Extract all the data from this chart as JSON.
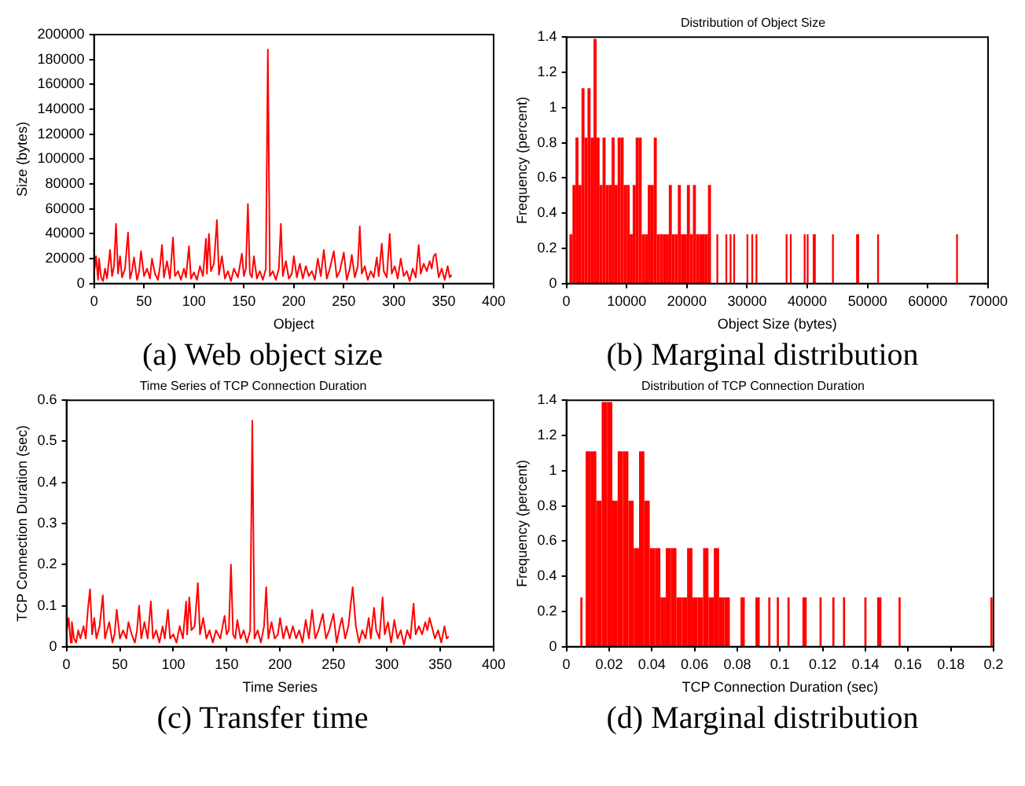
{
  "chart_data": [
    {
      "type": "line",
      "xlabel": "Object",
      "ylabel": "Size (bytes)",
      "color": "#ff0000",
      "annotations": [
        "(a) Web object size"
      ],
      "xlim": [
        0,
        400
      ],
      "xticks": [
        0,
        50,
        100,
        150,
        200,
        250,
        300,
        350,
        400
      ],
      "ylim": [
        0,
        200000
      ],
      "yticks": [
        0,
        20000,
        40000,
        60000,
        80000,
        100000,
        120000,
        140000,
        160000,
        180000,
        200000
      ],
      "x": [
        0,
        2,
        4,
        5,
        7,
        9,
        11,
        13,
        16,
        18,
        20,
        22,
        24,
        26,
        28,
        31,
        34,
        36,
        38,
        40,
        43,
        45,
        47,
        50,
        53,
        56,
        58,
        61,
        64,
        66,
        68,
        70,
        73,
        76,
        79,
        81,
        84,
        87,
        90,
        92,
        95,
        97,
        100,
        103,
        106,
        109,
        112,
        113,
        115,
        117,
        120,
        123,
        125,
        128,
        131,
        134,
        137,
        140,
        144,
        148,
        150,
        152,
        154,
        156,
        158,
        160,
        163,
        166,
        169,
        172,
        174,
        176,
        179,
        182,
        185,
        187,
        189,
        192,
        195,
        198,
        200,
        203,
        206,
        209,
        212,
        215,
        218,
        221,
        224,
        227,
        230,
        233,
        236,
        240,
        243,
        246,
        250,
        253,
        256,
        258,
        261,
        264,
        266,
        268,
        271,
        274,
        277,
        280,
        283,
        285,
        288,
        290,
        293,
        296,
        298,
        301,
        304,
        307,
        310,
        313,
        316,
        319,
        322,
        325,
        327,
        330,
        333,
        336,
        338,
        340,
        342,
        345,
        348,
        351,
        354,
        356,
        358
      ],
      "values": [
        8000,
        22000,
        3000,
        20000,
        5000,
        2000,
        12000,
        4000,
        27000,
        6000,
        14000,
        48000,
        8000,
        22000,
        5000,
        12000,
        41000,
        4000,
        10000,
        21000,
        3000,
        9000,
        26000,
        6000,
        12000,
        4000,
        20000,
        8000,
        3000,
        14000,
        31000,
        5000,
        18000,
        4000,
        37000,
        6000,
        10000,
        3000,
        12000,
        5000,
        30000,
        4000,
        9000,
        3000,
        14000,
        6000,
        36000,
        8000,
        40000,
        10000,
        16000,
        51000,
        7000,
        22000,
        4000,
        10000,
        2000,
        12000,
        5000,
        24000,
        6000,
        12000,
        64000,
        8000,
        5000,
        22000,
        4000,
        10000,
        3000,
        12000,
        188000,
        6000,
        10000,
        3000,
        12000,
        48000,
        6000,
        18000,
        4000,
        8000,
        22000,
        5000,
        16000,
        4000,
        14000,
        6000,
        10000,
        3000,
        20000,
        6000,
        27000,
        4000,
        12000,
        26000,
        5000,
        10000,
        25000,
        3000,
        12000,
        23000,
        5000,
        14000,
        46000,
        8000,
        14000,
        3000,
        10000,
        5000,
        21000,
        6000,
        32000,
        10000,
        5000,
        40000,
        8000,
        14000,
        4000,
        20000,
        6000,
        10000,
        2000,
        12000,
        5000,
        31000,
        8000,
        16000,
        10000,
        18000,
        12000,
        22000,
        24000,
        5000,
        12000,
        3000,
        14000,
        5000,
        7000
      ]
    },
    {
      "type": "histogram",
      "title": "Distribution of Object Size",
      "xlabel": "Object Size (bytes)",
      "ylabel": "Frequency (percent)",
      "color": "#ff0000",
      "annotations": [
        "(b) Marginal distribution"
      ],
      "xlim": [
        0,
        70000
      ],
      "xticks": [
        0,
        10000,
        20000,
        30000,
        40000,
        50000,
        60000,
        70000
      ],
      "ylim": [
        0,
        1.4
      ],
      "yticks": [
        0,
        0.2,
        0.4,
        0.6,
        0.8,
        1,
        1.2,
        1.4
      ],
      "bins": [
        500,
        1000,
        1500,
        2000,
        2500,
        3000,
        3500,
        4000,
        4500,
        5000,
        5500,
        6000,
        6500,
        7000,
        7500,
        8000,
        8500,
        9000,
        9500,
        10000,
        10500,
        11000,
        11500,
        12000,
        12500,
        13000,
        13500,
        14000,
        14500,
        15000,
        15500,
        16000,
        16500,
        17000,
        17500,
        18000,
        18500,
        19000,
        19500,
        20000,
        20500,
        21000,
        21500,
        22000,
        22500,
        23000,
        23500,
        24000,
        24900,
        25200,
        26400,
        26700,
        27100,
        27400,
        27700,
        28000,
        29900,
        30200,
        30700,
        31000,
        31400,
        31700,
        36400,
        36700,
        37100,
        37400,
        39400,
        39700,
        39900,
        40200,
        40900,
        41400,
        44100,
        44400,
        48100,
        48600,
        51600,
        51900,
        64700,
        65000
      ],
      "values": [
        0.28,
        0.56,
        0.83,
        0.56,
        1.11,
        0.83,
        1.11,
        0.83,
        1.39,
        0.83,
        0.56,
        0.83,
        0.56,
        0.56,
        0.83,
        0.56,
        0.83,
        0.83,
        0.56,
        0.56,
        0.28,
        0.56,
        0.83,
        0.83,
        0.28,
        0.28,
        0.56,
        0.56,
        0.83,
        0.28,
        0.28,
        0.28,
        0.28,
        0.56,
        0.28,
        0.28,
        0.56,
        0.28,
        0.28,
        0.56,
        0.28,
        0.56,
        0.28,
        0.28,
        0.28,
        0.28,
        0.56,
        0,
        0.28,
        0,
        0.28,
        0,
        0.28,
        0,
        0.28,
        0,
        0.28,
        0,
        0.28,
        0,
        0.28,
        0,
        0.28,
        0,
        0.28,
        0,
        0.28,
        0,
        0.28,
        0,
        0.28,
        0,
        0.28,
        0,
        0.28,
        0,
        0.28,
        0,
        0.28
      ]
    },
    {
      "type": "line",
      "title": "Time Series of TCP Connection Duration",
      "xlabel": "Time Series",
      "ylabel": "TCP Connection Duration (sec)",
      "color": "#ff0000",
      "annotations": [
        "(c) Transfer time"
      ],
      "xlim": [
        0,
        400
      ],
      "xticks": [
        0,
        50,
        100,
        150,
        200,
        250,
        300,
        350,
        400
      ],
      "ylim": [
        0,
        0.6
      ],
      "yticks": [
        0,
        0.1,
        0.2,
        0.3,
        0.4,
        0.5,
        0.6
      ],
      "x": [
        0,
        2,
        4,
        5,
        7,
        9,
        11,
        13,
        16,
        18,
        20,
        22,
        24,
        26,
        28,
        31,
        34,
        36,
        38,
        40,
        43,
        45,
        47,
        50,
        53,
        56,
        58,
        61,
        64,
        66,
        68,
        70,
        73,
        76,
        79,
        81,
        84,
        87,
        90,
        92,
        95,
        97,
        100,
        103,
        106,
        109,
        112,
        113,
        115,
        117,
        120,
        123,
        125,
        128,
        131,
        134,
        137,
        140,
        144,
        148,
        150,
        152,
        154,
        156,
        158,
        160,
        163,
        166,
        169,
        172,
        174,
        176,
        179,
        182,
        185,
        187,
        189,
        192,
        195,
        198,
        200,
        203,
        206,
        209,
        212,
        215,
        218,
        221,
        224,
        227,
        230,
        233,
        236,
        240,
        243,
        246,
        250,
        253,
        256,
        258,
        261,
        264,
        266,
        268,
        271,
        274,
        277,
        280,
        283,
        285,
        288,
        290,
        293,
        296,
        298,
        301,
        304,
        307,
        310,
        313,
        316,
        319,
        322,
        325,
        327,
        330,
        333,
        336,
        338,
        340,
        342,
        345,
        348,
        351,
        354,
        356,
        358
      ],
      "values": [
        0.03,
        0.07,
        0.01,
        0.06,
        0.02,
        0.01,
        0.04,
        0.02,
        0.05,
        0.02,
        0.09,
        0.14,
        0.03,
        0.07,
        0.02,
        0.05,
        0.125,
        0.02,
        0.04,
        0.06,
        0.01,
        0.03,
        0.09,
        0.02,
        0.04,
        0.02,
        0.06,
        0.03,
        0.01,
        0.04,
        0.1,
        0.02,
        0.06,
        0.02,
        0.11,
        0.02,
        0.04,
        0.01,
        0.05,
        0.02,
        0.09,
        0.02,
        0.03,
        0.01,
        0.05,
        0.02,
        0.11,
        0.03,
        0.12,
        0.04,
        0.05,
        0.155,
        0.03,
        0.07,
        0.02,
        0.04,
        0.01,
        0.04,
        0.02,
        0.075,
        0.03,
        0.04,
        0.2,
        0.03,
        0.02,
        0.065,
        0.02,
        0.04,
        0.01,
        0.04,
        0.55,
        0.02,
        0.04,
        0.01,
        0.05,
        0.145,
        0.02,
        0.06,
        0.02,
        0.03,
        0.07,
        0.02,
        0.05,
        0.02,
        0.05,
        0.02,
        0.04,
        0.01,
        0.065,
        0.02,
        0.09,
        0.02,
        0.04,
        0.08,
        0.02,
        0.04,
        0.08,
        0.01,
        0.05,
        0.07,
        0.02,
        0.05,
        0.1,
        0.145,
        0.05,
        0.01,
        0.04,
        0.02,
        0.07,
        0.02,
        0.095,
        0.04,
        0.02,
        0.12,
        0.03,
        0.06,
        0.01,
        0.065,
        0.02,
        0.04,
        0.005,
        0.04,
        0.02,
        0.105,
        0.03,
        0.05,
        0.03,
        0.06,
        0.04,
        0.07,
        0.05,
        0.02,
        0.04,
        0.01,
        0.05,
        0.02,
        0.025
      ]
    },
    {
      "type": "histogram",
      "title": "Distribution of TCP Connection Duration",
      "xlabel": "TCP Connection Duration (sec)",
      "ylabel": "Frequency (percent)",
      "color": "#ff0000",
      "annotations": [
        "(d) Marginal distribution"
      ],
      "xlim": [
        0,
        0.2
      ],
      "xticks": [
        0,
        0.02,
        0.04,
        0.06,
        0.08,
        0.1,
        0.12,
        0.14,
        0.16,
        0.18,
        0.2
      ],
      "ylim": [
        0,
        1.4
      ],
      "yticks": [
        0,
        0.2,
        0.4,
        0.6,
        0.8,
        1,
        1.2,
        1.4
      ],
      "bins": [
        0.0065,
        0.0075,
        0.009,
        0.0115,
        0.014,
        0.0165,
        0.019,
        0.0215,
        0.024,
        0.0265,
        0.029,
        0.0315,
        0.034,
        0.0365,
        0.039,
        0.0415,
        0.044,
        0.0465,
        0.049,
        0.0515,
        0.054,
        0.0565,
        0.059,
        0.0615,
        0.064,
        0.0665,
        0.069,
        0.0715,
        0.074,
        0.0765,
        0.0815,
        0.0835,
        0.0885,
        0.0905,
        0.0945,
        0.0955,
        0.0985,
        0.0995,
        0.1035,
        0.1045,
        0.1105,
        0.1125,
        0.1185,
        0.1195,
        0.1245,
        0.1255,
        0.1295,
        0.1305,
        0.1395,
        0.1405,
        0.1455,
        0.1475,
        0.1555,
        0.1565,
        0.1985,
        0.1995
      ],
      "values": [
        0.28,
        0,
        1.11,
        1.11,
        0.83,
        1.39,
        1.39,
        0.83,
        1.11,
        1.11,
        0.83,
        0.56,
        1.11,
        0.83,
        0.56,
        0.56,
        0.28,
        0.56,
        0.56,
        0.28,
        0.28,
        0.56,
        0.28,
        0.28,
        0.56,
        0.28,
        0.56,
        0.28,
        0.28,
        0,
        0.28,
        0,
        0.28,
        0,
        0.28,
        0,
        0.28,
        0,
        0.28,
        0,
        0.28,
        0,
        0.28,
        0,
        0.28,
        0,
        0.28,
        0,
        0.28,
        0,
        0.28,
        0,
        0.28,
        0,
        0.28
      ]
    }
  ]
}
